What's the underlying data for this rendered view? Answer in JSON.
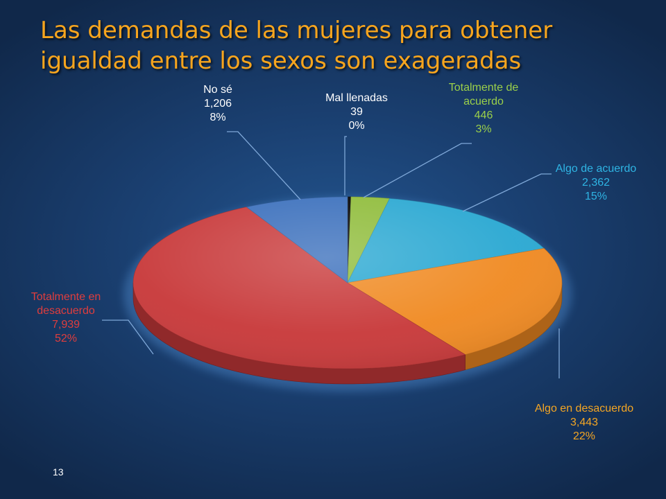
{
  "slide": {
    "title_lines": [
      "Las demandas de las mujeres para obtener",
      "igualdad entre los sexos son exageradas"
    ],
    "page_number": "13"
  },
  "chart_data": {
    "type": "pie",
    "title": "Las demandas de las mujeres para obtener igualdad entre los sexos son exageradas",
    "units": "responses",
    "slices": [
      {
        "name": "Mal llenadas",
        "name_lines": [
          "Mal llenadas"
        ],
        "value": 39,
        "value_label": "39",
        "percent_label": "0%",
        "color": "#000000",
        "label_color": "#ffffff"
      },
      {
        "name": "Totalmente de acuerdo",
        "name_lines": [
          "Totalmente de",
          "acuerdo"
        ],
        "value": 446,
        "value_label": "446",
        "percent_label": "3%",
        "color": "#8fbc3a",
        "label_color": "#9bd04a"
      },
      {
        "name": "Algo de acuerdo",
        "name_lines": [
          "Algo de acuerdo"
        ],
        "value": 2362,
        "value_label": "2,362",
        "percent_label": "15%",
        "color": "#2aa8d2",
        "label_color": "#2fb5e4"
      },
      {
        "name": "Algo en desacuerdo",
        "name_lines": [
          "Algo en desacuerdo"
        ],
        "value": 3443,
        "value_label": "3,443",
        "percent_label": "22%",
        "color": "#f08a22",
        "label_color": "#f5a623"
      },
      {
        "name": "Totalmente en desacuerdo",
        "name_lines": [
          "Totalmente en",
          "desacuerdo"
        ],
        "value": 7939,
        "value_label": "7,939",
        "percent_label": "52%",
        "color": "#c8393a",
        "label_color": "#e03d3d"
      },
      {
        "name": "No sé",
        "name_lines": [
          "No sé"
        ],
        "value": 1206,
        "value_label": "1,206",
        "percent_label": "8%",
        "color": "#3a6fbc",
        "label_color": "#ffffff"
      }
    ],
    "start_angle": "top (12 o'clock)",
    "direction": "clockwise",
    "style": "3d-tilted",
    "legend": "none (leader-line labels)"
  }
}
